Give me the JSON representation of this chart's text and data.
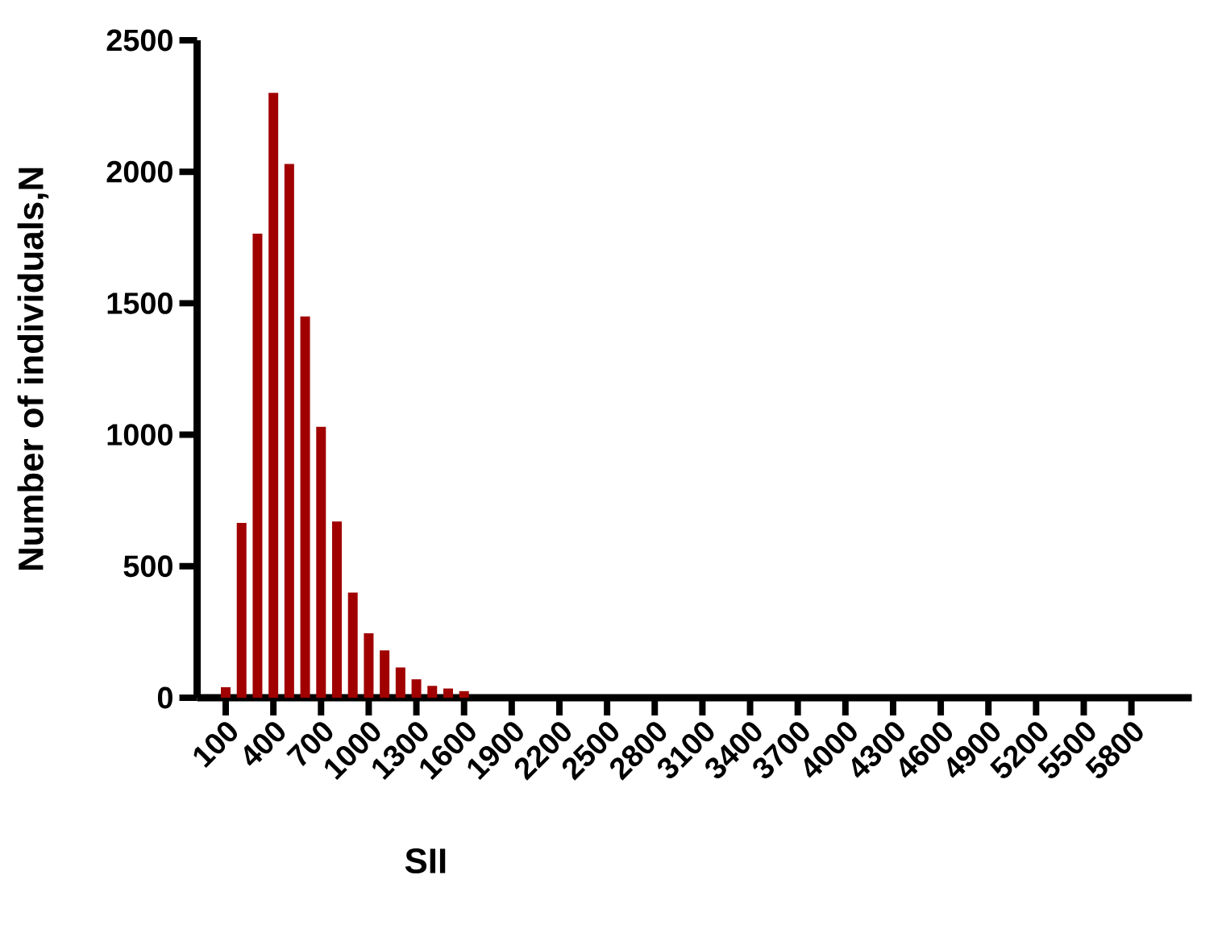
{
  "chart_data": {
    "type": "bar",
    "xlabel": "SII",
    "ylabel": "Number of individuals,N",
    "categories": [
      "100",
      null,
      null,
      "400",
      null,
      null,
      "700",
      null,
      null,
      "1000",
      null,
      null,
      "1300",
      null,
      null,
      "1600",
      null,
      null,
      "1900",
      null,
      null,
      "2200",
      null,
      null,
      "2500",
      null,
      null,
      "2800",
      null,
      null,
      "3100",
      null,
      null,
      "3400",
      null,
      null,
      "3700",
      null,
      null,
      "4000",
      null,
      null,
      "4300",
      null,
      null,
      "4600",
      null,
      null,
      "4900",
      null,
      null,
      "5200",
      null,
      null,
      "5500",
      null,
      null,
      "5800"
    ],
    "values": [
      40,
      665,
      1765,
      2300,
      2030,
      1450,
      1030,
      670,
      400,
      245,
      180,
      115,
      70,
      45,
      35,
      25,
      0,
      0,
      0,
      0,
      0,
      0,
      0,
      0,
      0,
      0,
      0,
      0,
      0,
      0,
      0,
      0,
      0,
      0,
      0,
      0,
      0,
      0,
      0,
      0,
      0,
      0,
      0,
      0,
      0,
      0,
      0,
      0,
      0,
      0,
      0,
      0,
      0,
      0,
      0,
      0,
      0,
      0
    ],
    "color": "#a00000",
    "ylim": [
      0,
      2500
    ],
    "yticks": [
      0,
      500,
      1000,
      1500,
      2000,
      2500
    ],
    "grid": false
  }
}
